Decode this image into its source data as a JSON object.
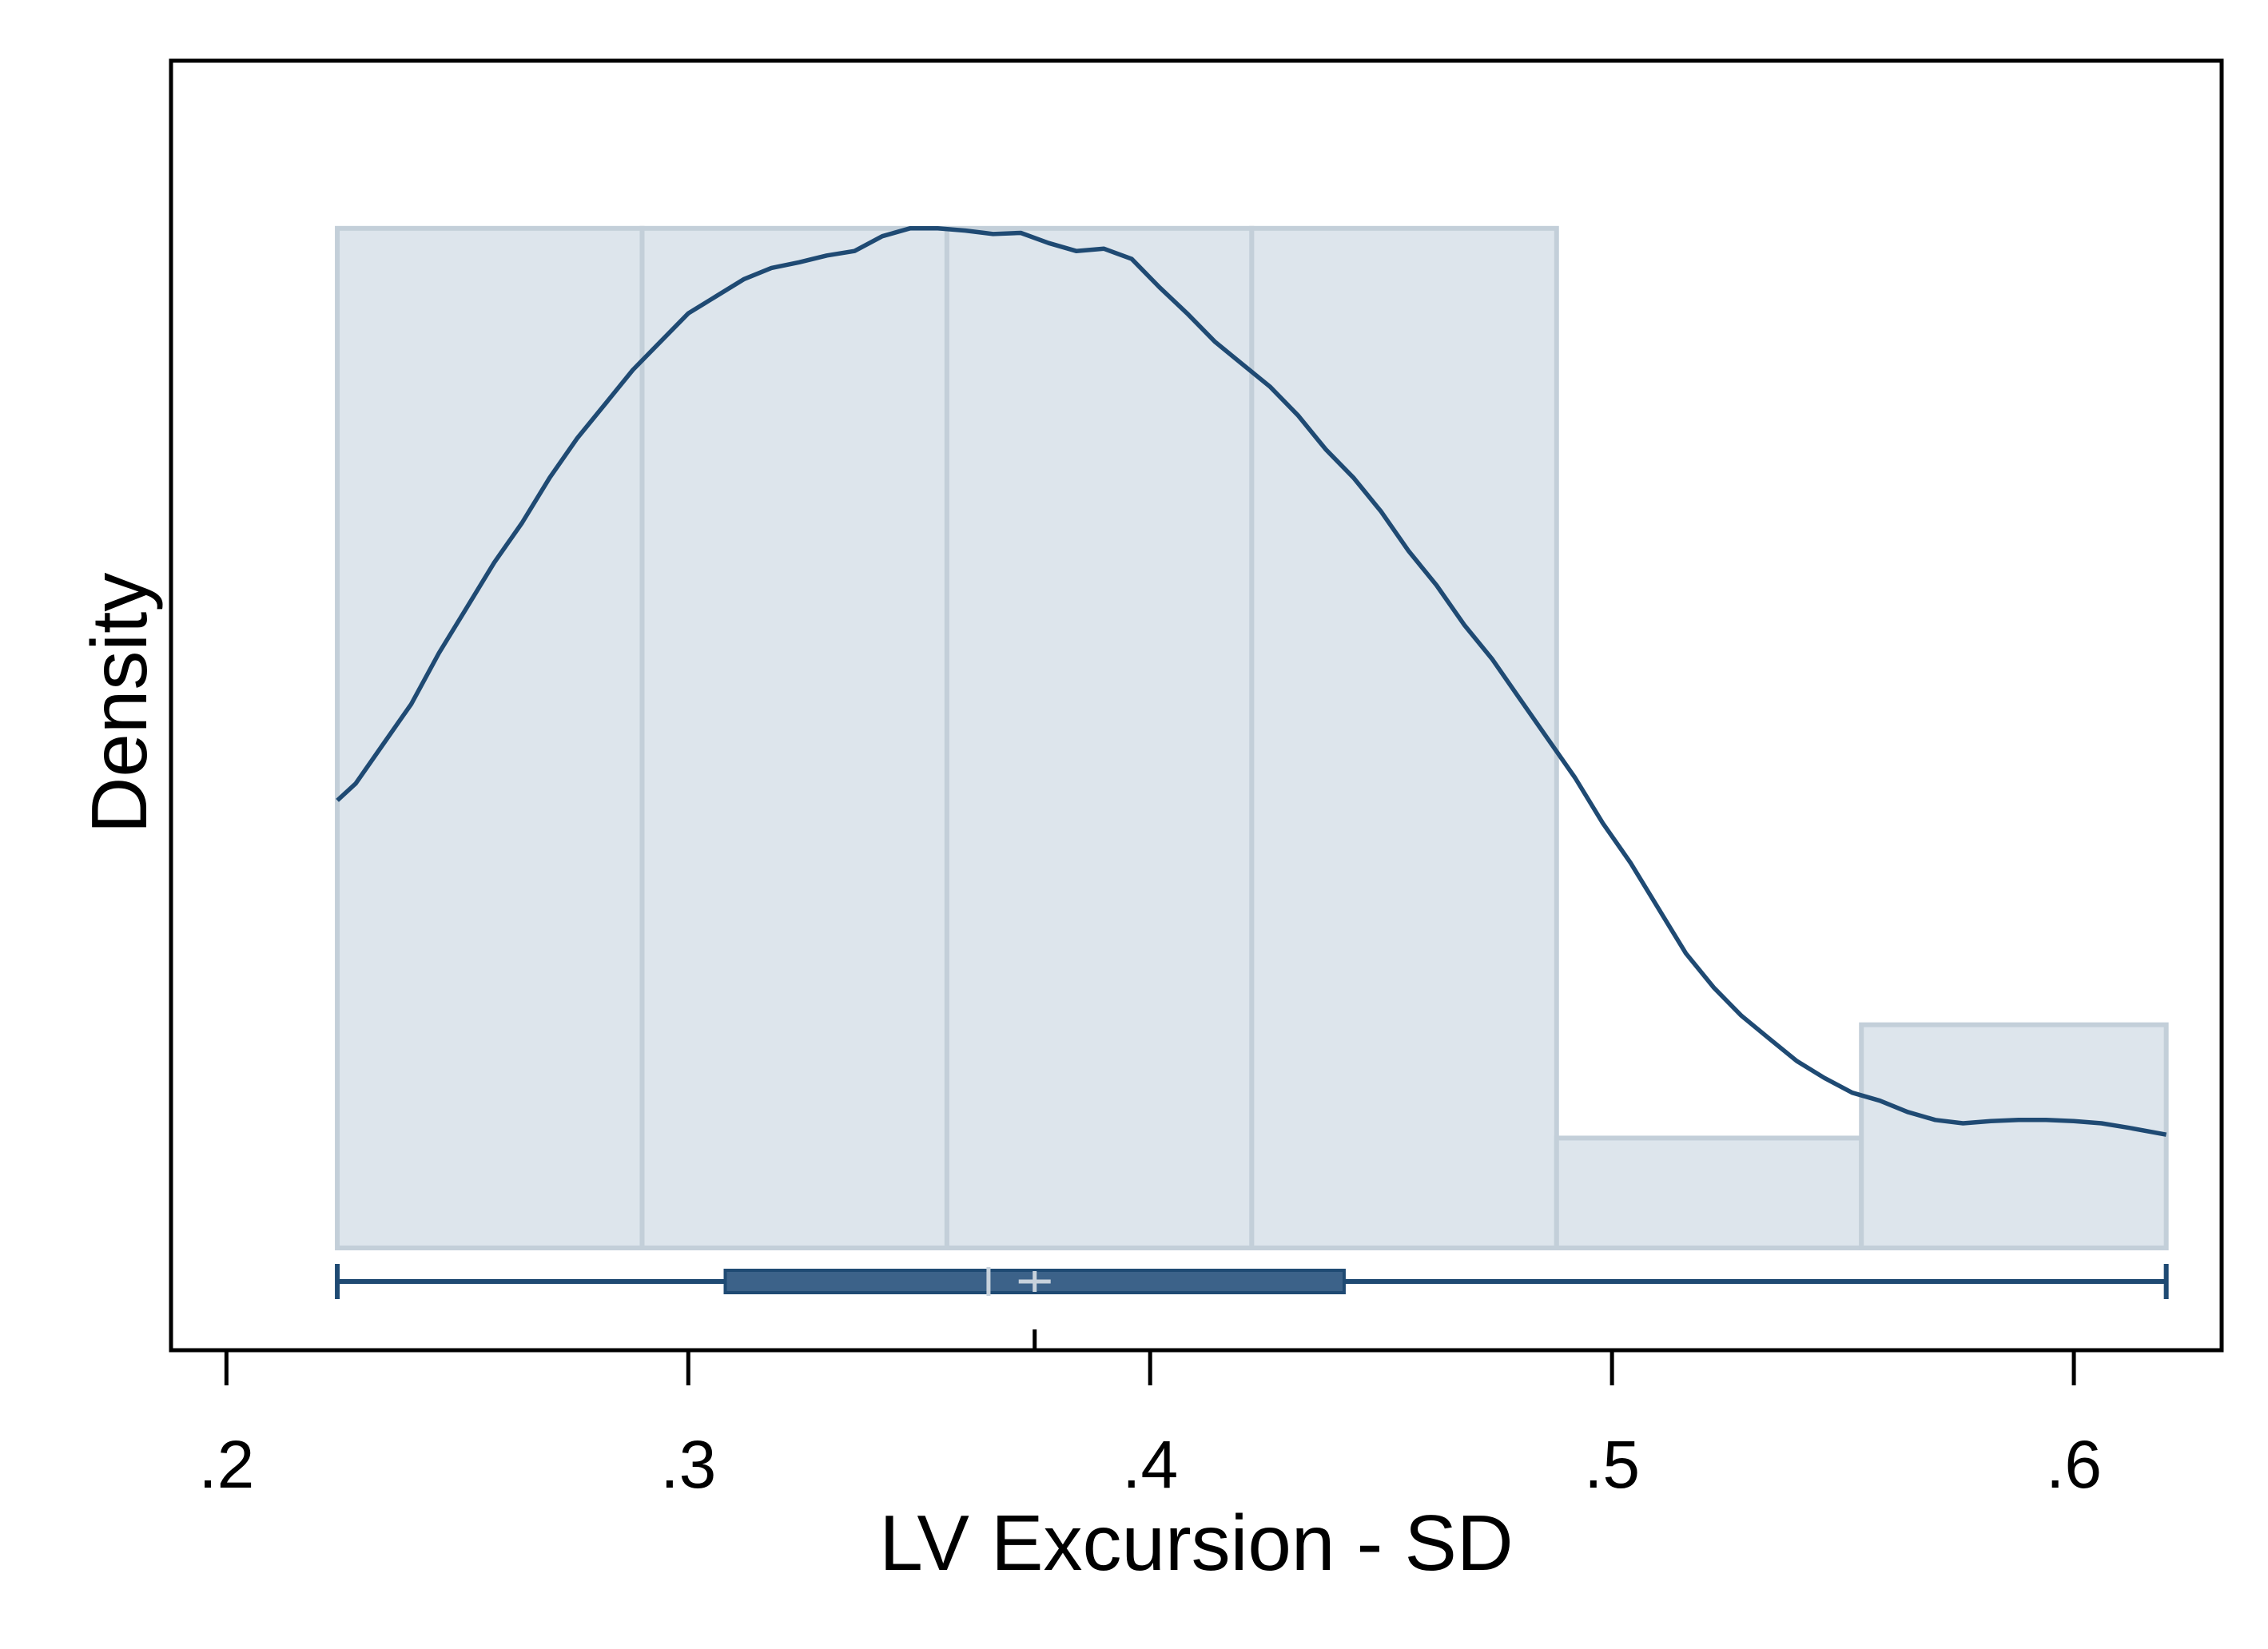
{
  "chart_data": {
    "type": "histogram",
    "xlabel": "LV Excursion - SD",
    "ylabel": "Density",
    "xlim": [
      0.188,
      0.632
    ],
    "x_ticks": [
      {
        "value": 0.2,
        "label": ".2"
      },
      {
        "value": 0.3,
        "label": ".3"
      },
      {
        "value": 0.4,
        "label": ".4"
      },
      {
        "value": 0.5,
        "label": ".5"
      },
      {
        "value": 0.6,
        "label": ".6"
      }
    ],
    "y_relative_max": 1.0,
    "bins": [
      {
        "x0": 0.224,
        "x1": 0.29,
        "height": 0.9
      },
      {
        "x0": 0.29,
        "x1": 0.356,
        "height": 0.9
      },
      {
        "x0": 0.356,
        "x1": 0.422,
        "height": 0.9
      },
      {
        "x0": 0.422,
        "x1": 0.488,
        "height": 0.9
      },
      {
        "x0": 0.488,
        "x1": 0.554,
        "height": 0.097
      },
      {
        "x0": 0.554,
        "x1": 0.62,
        "height": 0.197
      }
    ],
    "density_curve": [
      [
        0.224,
        0.395
      ],
      [
        0.228,
        0.41
      ],
      [
        0.234,
        0.445
      ],
      [
        0.24,
        0.48
      ],
      [
        0.246,
        0.525
      ],
      [
        0.252,
        0.565
      ],
      [
        0.258,
        0.605
      ],
      [
        0.264,
        0.64
      ],
      [
        0.27,
        0.68
      ],
      [
        0.276,
        0.715
      ],
      [
        0.282,
        0.745
      ],
      [
        0.288,
        0.775
      ],
      [
        0.294,
        0.8
      ],
      [
        0.3,
        0.825
      ],
      [
        0.306,
        0.84
      ],
      [
        0.312,
        0.855
      ],
      [
        0.318,
        0.865
      ],
      [
        0.324,
        0.87
      ],
      [
        0.33,
        0.876
      ],
      [
        0.336,
        0.88
      ],
      [
        0.342,
        0.893
      ],
      [
        0.348,
        0.9
      ],
      [
        0.354,
        0.9
      ],
      [
        0.36,
        0.898
      ],
      [
        0.366,
        0.895
      ],
      [
        0.372,
        0.896
      ],
      [
        0.378,
        0.887
      ],
      [
        0.384,
        0.88
      ],
      [
        0.39,
        0.882
      ],
      [
        0.396,
        0.873
      ],
      [
        0.402,
        0.848
      ],
      [
        0.408,
        0.825
      ],
      [
        0.414,
        0.8
      ],
      [
        0.42,
        0.78
      ],
      [
        0.426,
        0.76
      ],
      [
        0.432,
        0.735
      ],
      [
        0.438,
        0.705
      ],
      [
        0.444,
        0.68
      ],
      [
        0.45,
        0.65
      ],
      [
        0.456,
        0.615
      ],
      [
        0.462,
        0.585
      ],
      [
        0.468,
        0.55
      ],
      [
        0.474,
        0.52
      ],
      [
        0.48,
        0.485
      ],
      [
        0.486,
        0.45
      ],
      [
        0.492,
        0.415
      ],
      [
        0.498,
        0.375
      ],
      [
        0.504,
        0.34
      ],
      [
        0.51,
        0.3
      ],
      [
        0.516,
        0.26
      ],
      [
        0.522,
        0.23
      ],
      [
        0.528,
        0.205
      ],
      [
        0.534,
        0.185
      ],
      [
        0.54,
        0.165
      ],
      [
        0.546,
        0.15
      ],
      [
        0.552,
        0.137
      ],
      [
        0.558,
        0.13
      ],
      [
        0.564,
        0.12
      ],
      [
        0.57,
        0.113
      ],
      [
        0.576,
        0.11
      ],
      [
        0.582,
        0.112
      ],
      [
        0.588,
        0.113
      ],
      [
        0.594,
        0.113
      ],
      [
        0.6,
        0.112
      ],
      [
        0.606,
        0.11
      ],
      [
        0.612,
        0.106
      ],
      [
        0.62,
        0.1
      ]
    ],
    "boxplot": {
      "min": 0.224,
      "q1": 0.308,
      "median": 0.365,
      "mean": 0.375,
      "q3": 0.442,
      "max": 0.62
    },
    "colors": {
      "bar_fill": "#dde5ec",
      "bar_stroke": "#c3cfd9",
      "curve": "#1f4a73",
      "box_fill": "#3c6289",
      "median_mark": "#c8d2dc"
    },
    "grid": false
  }
}
